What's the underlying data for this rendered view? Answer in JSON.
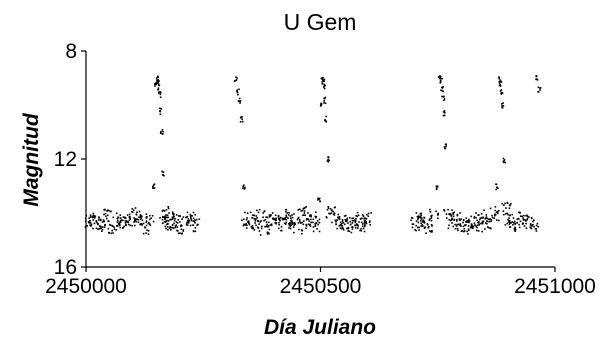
{
  "chart_data": {
    "type": "scatter",
    "title": "U Gem",
    "xlabel": "Día Juliano",
    "ylabel": "Magnitud",
    "xlim": [
      2450000,
      2451000
    ],
    "ylim": [
      16,
      8
    ],
    "y_inverted": true,
    "xticks": [
      2450000,
      2450500,
      2451000
    ],
    "xtick_labels": [
      "2450000",
      "2450500",
      "2451000"
    ],
    "yticks": [
      8,
      12,
      16
    ],
    "ytick_labels": [
      "8",
      "12",
      "16"
    ],
    "grid": false,
    "legend": "none",
    "marker_color": "#000000",
    "quiescent_magnitude": 14.3,
    "outburst_peak_magnitude": 9.0,
    "series": [
      {
        "values_note_ref": "x = Julian Day, y = visual magnitude",
        "x": [
          2450005,
          2450015,
          2450025,
          2450035,
          2450045,
          2450055,
          2450065,
          2450075,
          2450085,
          2450095,
          2450105,
          2450115,
          2450125,
          2450135,
          2450143,
          2450148,
          2450150,
          2450152,
          2450154,
          2450156,
          2450158,
          2450160,
          2450162,
          2450165,
          2450170,
          2450175,
          2450180,
          2450190,
          2450200,
          2450210,
          2450222,
          2450232,
          2450318,
          2450322,
          2450326,
          2450330,
          2450335,
          2450340,
          2450350,
          2450360,
          2450370,
          2450380,
          2450390,
          2450400,
          2450410,
          2450420,
          2450430,
          2450440,
          2450450,
          2450460,
          2450470,
          2450480,
          2450490,
          2450495,
          2450500,
          2450502,
          2450504,
          2450506,
          2450508,
          2450510,
          2450515,
          2450520,
          2450530,
          2450540,
          2450550,
          2450560,
          2450570,
          2450580,
          2450590,
          2450598,
          2450700,
          2450710,
          2450720,
          2450730,
          2450740,
          2450748,
          2450752,
          2450755,
          2450758,
          2450760,
          2450762,
          2450765,
          2450770,
          2450780,
          2450790,
          2450800,
          2450810,
          2450820,
          2450830,
          2450840,
          2450850,
          2450860,
          2450870,
          2450875,
          2450880,
          2450882,
          2450884,
          2450886,
          2450890,
          2450895,
          2450900,
          2450910,
          2450920,
          2450930,
          2450940,
          2450955,
          2450960,
          2450965
        ],
        "y": [
          14.3,
          14.2,
          14.4,
          14.3,
          14.1,
          14.5,
          14.2,
          14.3,
          14.4,
          14.2,
          14.0,
          14.3,
          14.5,
          14.2,
          13.0,
          9.2,
          9.0,
          9.1,
          9.3,
          9.6,
          10.2,
          11.0,
          12.5,
          14.0,
          14.3,
          14.4,
          14.2,
          14.3,
          14.5,
          14.3,
          14.2,
          14.4,
          9.0,
          9.5,
          9.8,
          10.5,
          13.0,
          14.2,
          14.3,
          14.4,
          14.1,
          14.6,
          14.3,
          14.2,
          14.4,
          14.1,
          14.3,
          14.2,
          14.5,
          14.0,
          14.3,
          14.2,
          14.4,
          13.5,
          10.0,
          9.0,
          9.1,
          9.3,
          9.8,
          10.5,
          12.0,
          14.0,
          14.2,
          14.4,
          14.3,
          14.5,
          14.2,
          14.3,
          14.4,
          14.2,
          14.4,
          14.2,
          14.3,
          14.5,
          14.1,
          13.0,
          9.0,
          9.1,
          9.4,
          9.7,
          10.3,
          11.5,
          14.0,
          14.3,
          14.2,
          14.4,
          14.5,
          14.3,
          14.2,
          14.4,
          14.1,
          14.3,
          14.0,
          13.0,
          9.0,
          9.2,
          9.5,
          10.0,
          12.0,
          13.8,
          14.2,
          14.3,
          14.4,
          14.2,
          14.3,
          14.4,
          9.0,
          9.4
        ]
      }
    ]
  }
}
